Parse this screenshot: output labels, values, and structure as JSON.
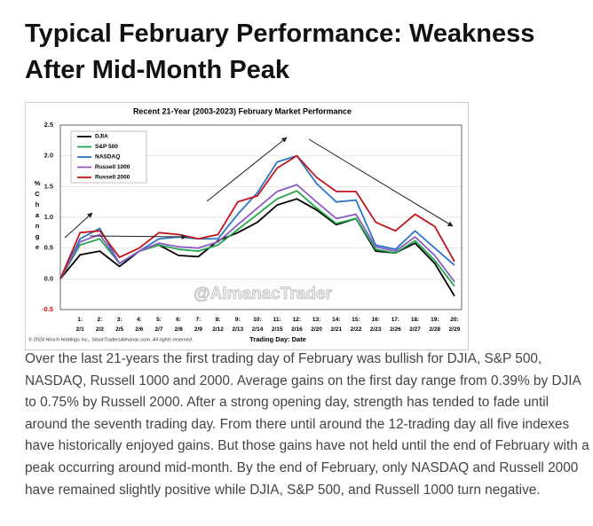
{
  "header": {
    "title": "Typical February Performance: Weakness After Mid-Month Peak"
  },
  "chart_data": {
    "type": "line",
    "title": "Recent 21-Year (2003-2023) February Market Performance",
    "y_label": "% Change",
    "x_label": "Trading Day: Date",
    "credit": "© 2024 Hirsch Holdings Inc., StockTradersAlmanac.com. All rights reserved.",
    "watermark": "@AlmanacTrader",
    "categories": [
      null,
      "1:\n2/1",
      "2:\n2/2",
      "3:\n2/5",
      "4:\n2/6",
      "5:\n2/7",
      "6:\n2/8",
      "7:\n2/9",
      "8:\n2/12",
      "9:\n2/13",
      "10:\n2/14",
      "11:\n2/15",
      "12:\n2/16",
      "13:\n2/20",
      "14:\n2/21",
      "15:\n2/22",
      "16:\n2/23",
      "17:\n2/26",
      "18:\n2/27",
      "19:\n2/28",
      "20:\n2/29"
    ],
    "series": [
      {
        "name": "DJIA",
        "color": "#000000",
        "values": [
          0,
          0.39,
          0.45,
          0.2,
          0.45,
          0.55,
          0.38,
          0.36,
          0.62,
          0.75,
          0.92,
          1.2,
          1.3,
          1.12,
          0.88,
          0.98,
          0.45,
          0.42,
          0.58,
          0.25,
          -0.28
        ]
      },
      {
        "name": "S&P 500",
        "color": "#1ea84a",
        "values": [
          0,
          0.55,
          0.65,
          0.25,
          0.45,
          0.55,
          0.48,
          0.45,
          0.55,
          0.8,
          1.05,
          1.3,
          1.43,
          1.15,
          0.9,
          0.98,
          0.48,
          0.42,
          0.62,
          0.3,
          -0.12
        ]
      },
      {
        "name": "NASDAQ",
        "color": "#2e75c8",
        "values": [
          0,
          0.65,
          0.82,
          0.25,
          0.45,
          0.65,
          0.68,
          0.65,
          0.65,
          1.05,
          1.4,
          1.9,
          2.0,
          1.55,
          1.25,
          1.28,
          0.55,
          0.48,
          0.78,
          0.5,
          0.22
        ]
      },
      {
        "name": "Russell 1000",
        "color": "#8a5cc4",
        "values": [
          0,
          0.6,
          0.72,
          0.25,
          0.45,
          0.58,
          0.52,
          0.5,
          0.6,
          0.88,
          1.15,
          1.42,
          1.53,
          1.25,
          0.98,
          1.05,
          0.52,
          0.45,
          0.68,
          0.38,
          -0.05
        ]
      },
      {
        "name": "Russell 2000",
        "color": "#c0141c",
        "values": [
          0,
          0.75,
          0.78,
          0.35,
          0.5,
          0.75,
          0.72,
          0.65,
          0.72,
          1.25,
          1.35,
          1.8,
          2.0,
          1.65,
          1.42,
          1.42,
          0.92,
          0.78,
          1.05,
          0.85,
          0.28
        ]
      }
    ],
    "ylim": [
      -0.5,
      2.5
    ],
    "yticks": [
      2.5,
      {
        "value": 2,
        "label": "2.0"
      },
      1.5,
      {
        "value": 1,
        "label": "1.0"
      },
      0.5,
      {
        "value": 0,
        "label": "0.0"
      },
      -0.5
    ],
    "grid": true,
    "legend": "upper left"
  },
  "body": {
    "paragraph": "Over the last 21-years the first trading day of February was bullish for DJIA, S&P 500, NASDAQ, Russell 1000 and 2000. Average gains on the first day range from 0.39% by DJIA to 0.75% by Russell 2000. After a strong opening day, strength has tended to fade until around the seventh trading day. From there until around the 12-trading day all five indexes have historically enjoyed gains. But those gains have not held until the end of February with a peak occurring around mid-month. By the end of February, only NASDAQ and Russell 2000 have remained slightly positive while DJIA, S&P 500, and Russell 1000 turn negative."
  }
}
